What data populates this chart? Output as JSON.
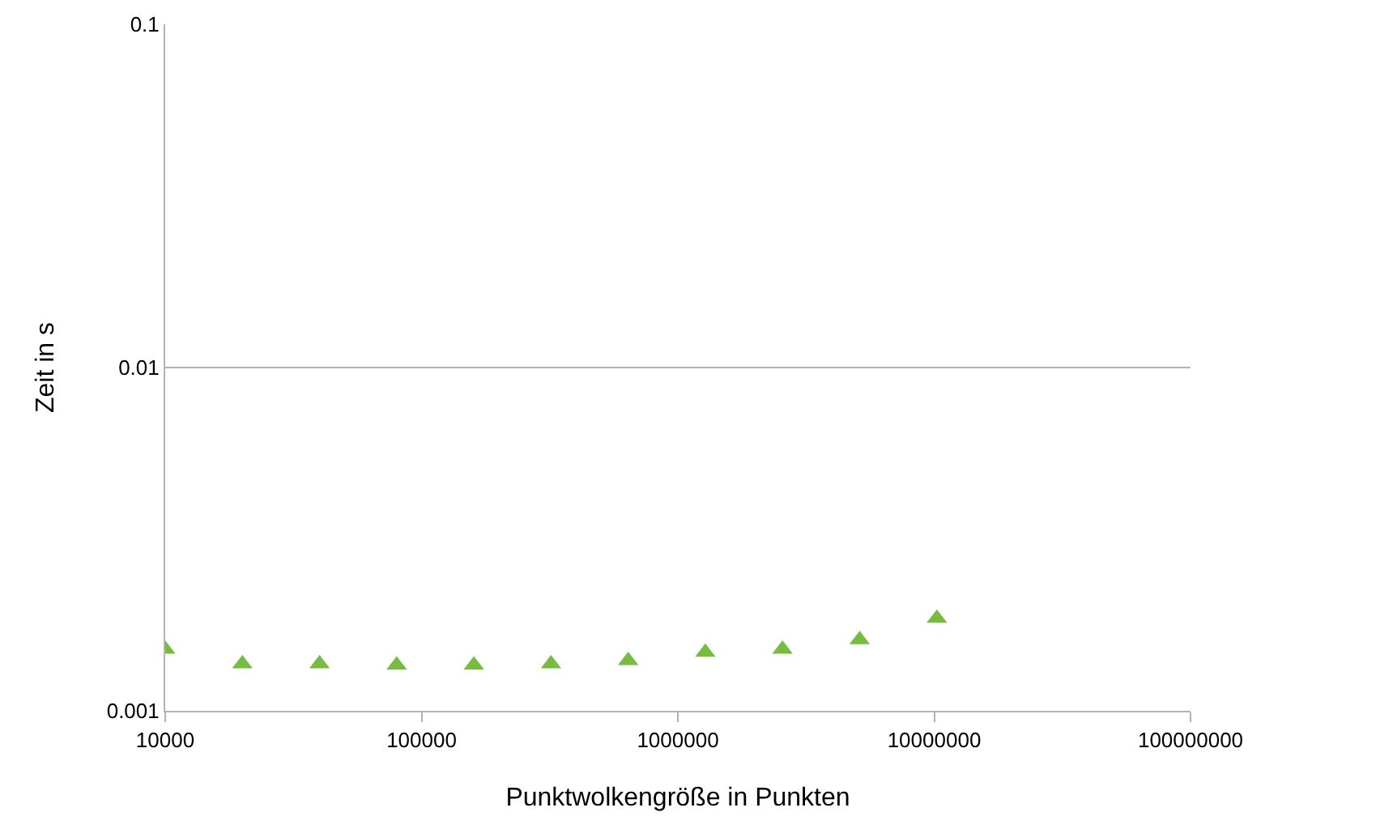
{
  "chart_data": {
    "type": "scatter",
    "xlabel": "Punktwolkengröße in Punkten",
    "ylabel": "Zeit in s",
    "x": [
      10000,
      20000,
      40000,
      80000,
      160000,
      320000,
      640000,
      1280000,
      2560000,
      5120000,
      10240000
    ],
    "series": [
      {
        "color": "#77bc41",
        "values": [
          0.00151,
          0.00137,
          0.00137,
          0.00136,
          0.00136,
          0.00137,
          0.0014,
          0.00148,
          0.00151,
          0.00161,
          0.00186
        ]
      }
    ],
    "log": "xy",
    "xlim": [
      10000,
      100000000
    ],
    "xticks": [
      10000,
      100000,
      1000000,
      10000000,
      100000000
    ],
    "ylim": [
      0.001,
      0.1
    ],
    "yticks": [
      0.001,
      0.01,
      0.1
    ],
    "grid": "y",
    "marker": "triangle"
  }
}
